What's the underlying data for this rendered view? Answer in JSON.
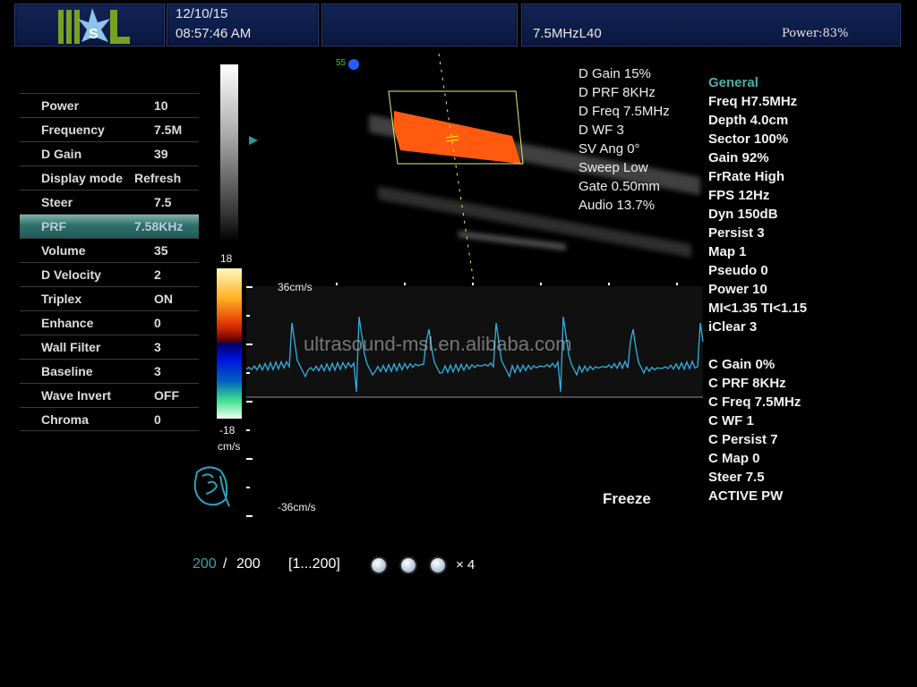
{
  "header": {
    "logo_text": "MSL",
    "date": "12/10/15",
    "time": "08:57:46 AM",
    "probe": "7.5MHzL40",
    "power": "Power:83%"
  },
  "menu": [
    {
      "label": "Power",
      "value": "10"
    },
    {
      "label": "Frequency",
      "value": "7.5M"
    },
    {
      "label": "D Gain",
      "value": "39"
    },
    {
      "label": "Display mode",
      "value": "Refresh"
    },
    {
      "label": "Steer",
      "value": "7.5"
    },
    {
      "label": "PRF",
      "value": "7.58KHz",
      "selected": true
    },
    {
      "label": "Volume",
      "value": "35"
    },
    {
      "label": "D Velocity",
      "value": "2"
    },
    {
      "label": "Triplex",
      "value": "ON"
    },
    {
      "label": "Enhance",
      "value": "0"
    },
    {
      "label": "Wall Filter",
      "value": "3"
    },
    {
      "label": "Baseline",
      "value": "3"
    },
    {
      "label": "Wave Invert",
      "value": "OFF"
    },
    {
      "label": "Chroma",
      "value": "0"
    }
  ],
  "image": {
    "angle_marker": "55",
    "color_scale_top": "18",
    "color_scale_bottom": "-18",
    "color_scale_unit": "cm/s",
    "spectrum_top": "36cm/s",
    "spectrum_bottom": "-36cm/s",
    "watermark": "ultrasound-msl.en.alibaba.com",
    "status": "Freeze"
  },
  "doppler_params": [
    "D Gain 15%",
    "D PRF 8KHz",
    "D Freq 7.5MHz",
    "D WF 3",
    "SV Ang 0°",
    "Sweep Low",
    "Gate 0.50mm",
    "Audio 13.7%"
  ],
  "general": {
    "title": "General",
    "items": [
      "Freq H7.5MHz",
      "Depth 4.0cm",
      "Sector 100%",
      "Gain 92%",
      "FrRate High",
      "FPS 12Hz",
      "Dyn 150dB",
      "Persist 3",
      "Map 1",
      "Pseudo 0",
      "Power 10",
      "MI<1.35  TI<1.15",
      "iClear 3"
    ],
    "color_items": [
      "C Gain 0%",
      "C PRF 8KHz",
      "C Freq 7.5MHz",
      "C WF 1",
      "C Persist 7",
      "C Map 0",
      "Steer 7.5",
      "ACTIVE PW"
    ]
  },
  "cine": {
    "current": "200",
    "separator": "/",
    "total": "200",
    "range": "[1...200]",
    "speed": "× 4"
  },
  "colors": {
    "accent": "#3aa6a0",
    "header_bg": "#0f1f4c",
    "flow": "#ff5a10"
  }
}
